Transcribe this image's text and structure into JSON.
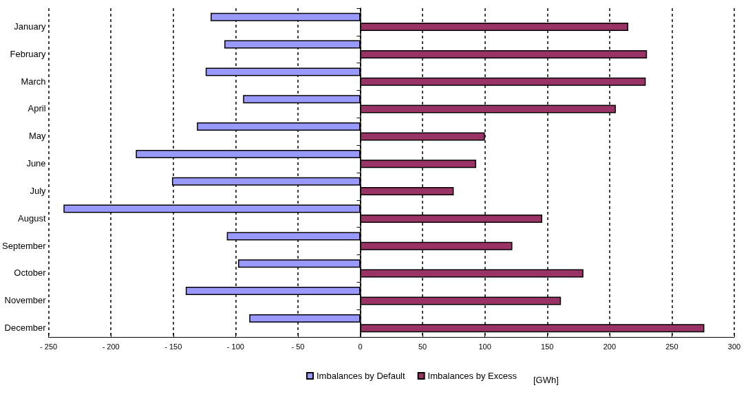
{
  "chart_data": {
    "type": "bar",
    "orientation": "horizontal",
    "xlabel": "[GWh]",
    "categories": [
      "January",
      "February",
      "March",
      "April",
      "May",
      "June",
      "July",
      "August",
      "September",
      "October",
      "November",
      "December"
    ],
    "series": [
      {
        "name": "Imbalances by Default",
        "color": "#9999ff",
        "values": [
          -120,
          -109,
          -124,
          -94,
          -131,
          -180,
          -151,
          -238,
          -107,
          -98,
          -140,
          -89
        ]
      },
      {
        "name": "Imbalances by Excess",
        "color": "#993366",
        "values": [
          215,
          230,
          229,
          205,
          100,
          93,
          75,
          146,
          122,
          179,
          161,
          276
        ]
      }
    ],
    "xlim": [
      -250,
      300
    ],
    "xticks": [
      {
        "value": -250,
        "label": "- 250"
      },
      {
        "value": -200,
        "label": "- 200"
      },
      {
        "value": -150,
        "label": "- 150"
      },
      {
        "value": -100,
        "label": "- 100"
      },
      {
        "value": -50,
        "label": "- 50"
      },
      0,
      50,
      100,
      150,
      200,
      250,
      300
    ],
    "grid": "x",
    "legend": "bottom"
  }
}
